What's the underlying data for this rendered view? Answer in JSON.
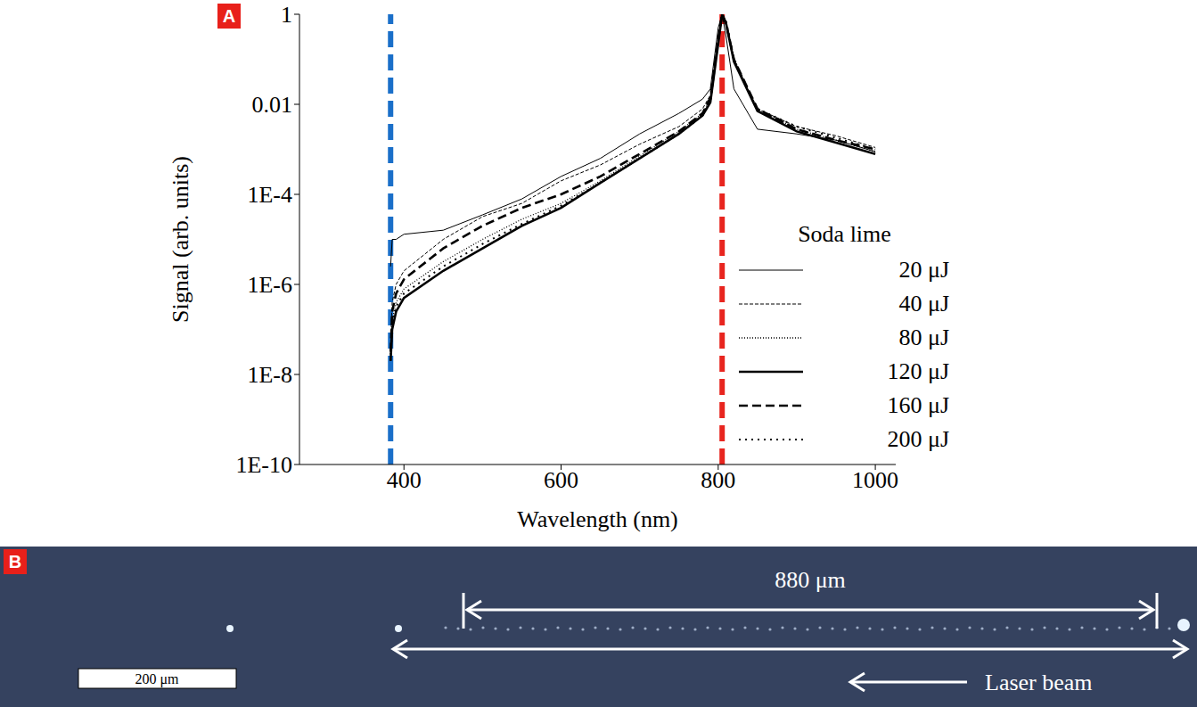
{
  "panel_labels": [
    "A",
    "B"
  ],
  "chart_data": {
    "type": "line",
    "x_label": "Wavelength (nm)",
    "y_label": "Signal (arb. units)",
    "log": "y",
    "grid": false,
    "legend": "right",
    "legend_title": "Soda lime",
    "xlim": [
      267,
      1026
    ],
    "xticks": [
      400,
      600,
      800,
      1000
    ],
    "ylim": [
      1e-10,
      1
    ],
    "yticks": [
      {
        "value": 1e-10,
        "label": "1E-10"
      },
      {
        "value": 1e-08,
        "label": "1E-8"
      },
      {
        "value": 1e-06,
        "label": "1E-6"
      },
      {
        "value": 0.0001,
        "label": "1E-4"
      },
      0.01,
      1
    ],
    "vlines": [
      {
        "x": 383,
        "color": "#1a6fc9",
        "line_style": "dashed"
      },
      {
        "x": 805,
        "color": "#e8251f",
        "line_style": "dashed"
      }
    ],
    "x": [
      383,
      385,
      390,
      400,
      450,
      500,
      550,
      600,
      650,
      700,
      750,
      780,
      790,
      800,
      805,
      810,
      820,
      850,
      900,
      950,
      1000
    ],
    "series": [
      {
        "name": "20 μJ",
        "color": "#000000",
        "line_style": "solid",
        "values": [
          2.5e-06,
          1e-05,
          1e-05,
          1.3e-05,
          1.6e-05,
          3.5e-05,
          7.9e-05,
          0.00025,
          0.00063,
          0.0022,
          0.0063,
          0.013,
          0.022,
          0.5,
          1,
          0.32,
          0.022,
          0.0028,
          0.0022,
          0.0016,
          0.00089
        ]
      },
      {
        "name": "40 μJ",
        "color": "#000000",
        "line_style": "dashed",
        "values": [
          5e-08,
          4e-07,
          1e-06,
          2e-06,
          1e-05,
          3.2e-05,
          6.3e-05,
          0.0002,
          0.00045,
          0.0013,
          0.0032,
          0.0079,
          0.016,
          0.32,
          1,
          0.56,
          0.1,
          0.0079,
          0.0032,
          0.002,
          0.0011
        ]
      },
      {
        "name": "80 μJ",
        "color": "#000000",
        "line_style": "dotted",
        "values": [
          2.5e-08,
          1.6e-07,
          4e-07,
          7.9e-07,
          3.2e-06,
          1e-05,
          2.8e-05,
          6.3e-05,
          0.0002,
          0.00071,
          0.0025,
          0.0063,
          0.013,
          0.25,
          1,
          0.63,
          0.089,
          0.0079,
          0.0028,
          0.0016,
          0.00089
        ]
      },
      {
        "name": "120 μJ",
        "color": "#000000",
        "line_style": "thick-solid",
        "values": [
          2e-08,
          1e-07,
          2.5e-07,
          5e-07,
          2e-06,
          6.3e-06,
          2e-05,
          5e-05,
          0.00018,
          0.00063,
          0.0022,
          0.0056,
          0.011,
          0.22,
          1,
          0.63,
          0.089,
          0.0071,
          0.0025,
          0.0014,
          0.00079
        ]
      },
      {
        "name": "160 μJ",
        "color": "#000000",
        "line_style": "thick-dashed",
        "values": [
          3.2e-08,
          2.5e-07,
          6.3e-07,
          1.3e-06,
          6.3e-06,
          2e-05,
          5e-05,
          0.0001,
          0.00025,
          0.00079,
          0.0025,
          0.0063,
          0.014,
          0.28,
          1,
          0.63,
          0.1,
          0.0079,
          0.0028,
          0.0016,
          0.001
        ]
      },
      {
        "name": "200 μJ",
        "color": "#000000",
        "line_style": "loose-dotted",
        "values": [
          2e-08,
          1.3e-07,
          3.2e-07,
          6.3e-07,
          2.5e-06,
          7.9e-06,
          2.2e-05,
          5.6e-05,
          0.00018,
          0.00063,
          0.0022,
          0.0056,
          0.011,
          0.25,
          1,
          0.71,
          0.1,
          0.0079,
          0.0032,
          0.0018,
          0.001
        ]
      }
    ]
  },
  "image_panel": {
    "length_label": "880 μm",
    "scale_bar_label": "200 μm",
    "arrow_label": "Laser beam"
  }
}
